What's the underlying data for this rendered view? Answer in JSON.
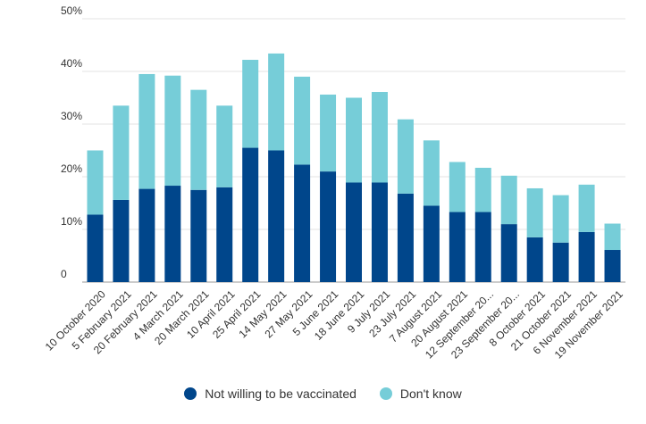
{
  "chart_data": {
    "type": "bar",
    "stacked": true,
    "categories": [
      "10 October 2020",
      "5 February 2021",
      "20 February 2021",
      "4 March 2021",
      "20 March 2021",
      "10 April 2021",
      "25 April 2021",
      "14 May 2021",
      "27 May 2021",
      "5 June 2021",
      "18 June 2021",
      "9 July 2021",
      "23 July 2021",
      "7 August 2021",
      "20 August 2021",
      "12 September 20...",
      "23 September 20...",
      "8 October 2021",
      "21 October 2021",
      "6 November 2021",
      "19 November 2021"
    ],
    "series": [
      {
        "name": "Not willing to be vaccinated",
        "color": "#00468b",
        "values": [
          12.8,
          15.6,
          17.7,
          18.3,
          17.5,
          18.0,
          25.5,
          25.0,
          22.3,
          21.0,
          18.9,
          18.9,
          16.8,
          14.5,
          13.3,
          13.3,
          11.0,
          8.5,
          7.5,
          9.5,
          6.1
        ]
      },
      {
        "name": "Don't know",
        "color": "#76cdd8",
        "values": [
          12.2,
          17.9,
          21.8,
          20.9,
          19.0,
          15.5,
          16.7,
          18.4,
          16.7,
          14.6,
          16.1,
          17.2,
          14.1,
          12.4,
          9.5,
          8.4,
          9.2,
          9.3,
          9.0,
          9.0,
          5.0
        ]
      }
    ],
    "ylim": [
      0,
      50
    ],
    "yticks": [
      "0",
      "10%",
      "20%",
      "30%",
      "40%",
      "50%"
    ],
    "grid": true,
    "legend_position": "bottom"
  }
}
